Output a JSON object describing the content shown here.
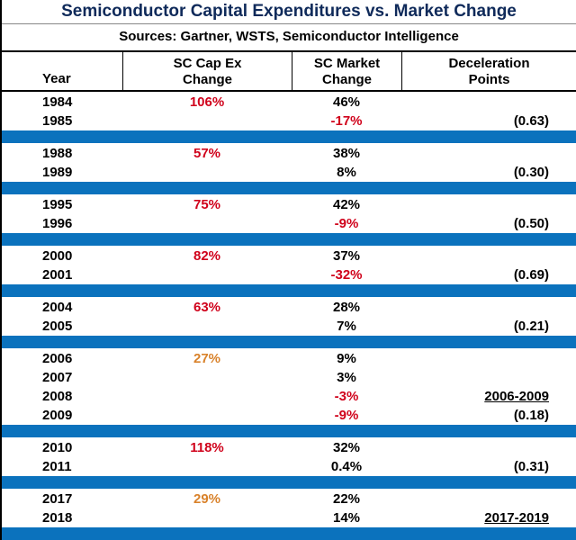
{
  "title": "Semiconductor Capital Expenditures vs. Market Change",
  "sources": "Sources: Gartner, WSTS, Semiconductor Intelligence",
  "headers": {
    "year": "Year",
    "capex_line1": "SC Cap Ex",
    "capex_line2": "Change",
    "market_line1": "SC Market",
    "market_line2": "Change",
    "decel_line1": "Deceleration",
    "decel_line2": "Points"
  },
  "colors": {
    "band": "#0b72bd",
    "negative": "#d0021b",
    "moderate": "#d9822b",
    "title": "#0f2a5a"
  },
  "groups": [
    {
      "rows": [
        {
          "year": "1984",
          "capex": "106%",
          "capex_color": "red",
          "market": "46%",
          "market_color": "",
          "decel": "",
          "decel_ul": false
        },
        {
          "year": "1985",
          "capex": "",
          "capex_color": "",
          "market": "-17%",
          "market_color": "red",
          "decel": "(0.63)",
          "decel_ul": false
        }
      ]
    },
    {
      "rows": [
        {
          "year": "1988",
          "capex": "57%",
          "capex_color": "red",
          "market": "38%",
          "market_color": "",
          "decel": "",
          "decel_ul": false
        },
        {
          "year": "1989",
          "capex": "",
          "capex_color": "",
          "market": "8%",
          "market_color": "",
          "decel": "(0.30)",
          "decel_ul": false
        }
      ]
    },
    {
      "rows": [
        {
          "year": "1995",
          "capex": "75%",
          "capex_color": "red",
          "market": "42%",
          "market_color": "",
          "decel": "",
          "decel_ul": false
        },
        {
          "year": "1996",
          "capex": "",
          "capex_color": "",
          "market": "-9%",
          "market_color": "red",
          "decel": "(0.50)",
          "decel_ul": false
        }
      ]
    },
    {
      "rows": [
        {
          "year": "2000",
          "capex": "82%",
          "capex_color": "red",
          "market": "37%",
          "market_color": "",
          "decel": "",
          "decel_ul": false
        },
        {
          "year": "2001",
          "capex": "",
          "capex_color": "",
          "market": "-32%",
          "market_color": "red",
          "decel": "(0.69)",
          "decel_ul": false
        }
      ]
    },
    {
      "rows": [
        {
          "year": "2004",
          "capex": "63%",
          "capex_color": "red",
          "market": "28%",
          "market_color": "",
          "decel": "",
          "decel_ul": false
        },
        {
          "year": "2005",
          "capex": "",
          "capex_color": "",
          "market": "7%",
          "market_color": "",
          "decel": "(0.21)",
          "decel_ul": false
        }
      ]
    },
    {
      "rows": [
        {
          "year": "2006",
          "capex": "27%",
          "capex_color": "orange",
          "market": "9%",
          "market_color": "",
          "decel": "",
          "decel_ul": false
        },
        {
          "year": "2007",
          "capex": "",
          "capex_color": "",
          "market": "3%",
          "market_color": "",
          "decel": "",
          "decel_ul": false
        },
        {
          "year": "2008",
          "capex": "",
          "capex_color": "",
          "market": "-3%",
          "market_color": "red",
          "decel": "2006-2009",
          "decel_ul": true
        },
        {
          "year": "2009",
          "capex": "",
          "capex_color": "",
          "market": "-9%",
          "market_color": "red",
          "decel": "(0.18)",
          "decel_ul": false
        }
      ]
    },
    {
      "rows": [
        {
          "year": "2010",
          "capex": "118%",
          "capex_color": "red",
          "market": "32%",
          "market_color": "",
          "decel": "",
          "decel_ul": false
        },
        {
          "year": "2011",
          "capex": "",
          "capex_color": "",
          "market": "0.4%",
          "market_color": "",
          "decel": "(0.31)",
          "decel_ul": false
        }
      ]
    },
    {
      "rows": [
        {
          "year": "2017",
          "capex": "29%",
          "capex_color": "orange",
          "market": "22%",
          "market_color": "",
          "decel": "",
          "decel_ul": false
        },
        {
          "year": "2018",
          "capex": "",
          "capex_color": "",
          "market": "14%",
          "market_color": "",
          "decel": "2017-2019",
          "decel_ul": true
        }
      ]
    }
  ]
}
